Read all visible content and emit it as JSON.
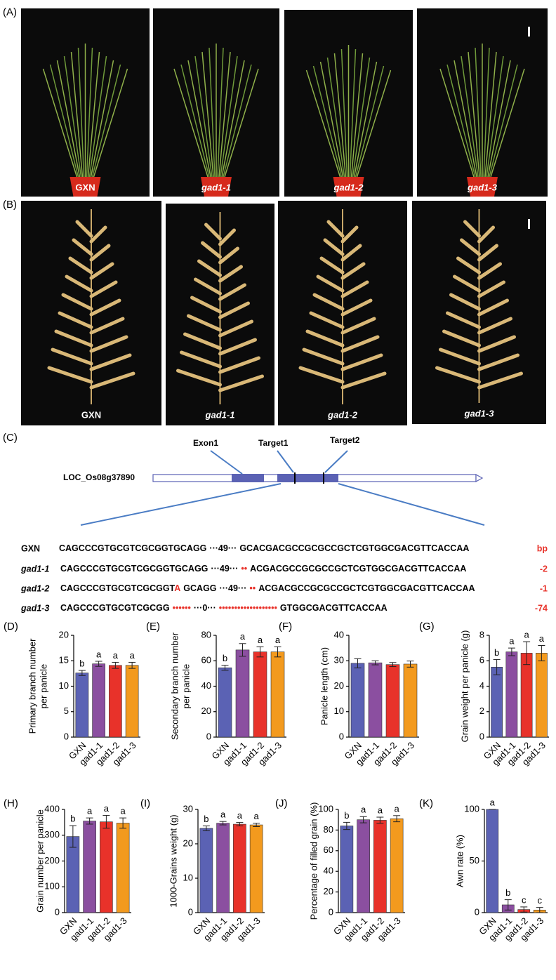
{
  "photos_a": {
    "label": "(A)",
    "captions": [
      "GXN",
      "gad1-1",
      "gad1-2",
      "gad1-3"
    ]
  },
  "photos_b": {
    "label": "(B)",
    "captions": [
      "GXN",
      "gad1-1",
      "gad1-2",
      "gad1-3"
    ]
  },
  "gene_diagram": {
    "label": "(C)",
    "gene": "LOC_Os08g37890",
    "features": [
      "Exon1",
      "Target1",
      "Target2"
    ]
  },
  "sequences": [
    {
      "name": "GXN",
      "segments": [
        {
          "text": "CAGCCCGTGCGTCGCGGTGCAGG"
        },
        {
          "text": "···49···"
        },
        {
          "text": "GCACGACGCCGCGCCGCTCGTGGCGACGTTCACCAA"
        }
      ],
      "change": "bp"
    },
    {
      "name": "gad1-1",
      "segments": [
        {
          "text": "CAGCCCGTGCGTCGCGGTGCAGG"
        },
        {
          "text": "···49···"
        },
        {
          "text": "••",
          "mutated": true
        },
        {
          "text": "ACGACGCCGCGCCGCTCGTGGCGACGTTCACCAA"
        }
      ],
      "change": "-2"
    },
    {
      "name": "gad1-2",
      "segments": [
        {
          "text": "CAGCCCGTGCGTCGCGGT"
        },
        {
          "text": "A",
          "mutated": true
        },
        {
          "text": "GCAGG"
        },
        {
          "text": "···49···"
        },
        {
          "text": "••",
          "mutated": true
        },
        {
          "text": "ACGACGCCGCGCCGCTCGTGGCGACGTTCACCAA"
        }
      ],
      "change": "-1"
    },
    {
      "name": "gad1-3",
      "segments": [
        {
          "text": "CAGCCCGTGCGTCGCGG"
        },
        {
          "text": "••••••",
          "mutated": true
        },
        {
          "text": "···0···"
        },
        {
          "text": "•••••••••••••••••••",
          "mutated": true
        },
        {
          "text": "GTGGCGACGTTCACCAA"
        }
      ],
      "change": "-74"
    }
  ],
  "chart_data": [
    {
      "type": "bar",
      "panel": "(D)",
      "ylabel": [
        "Primary branch number",
        "per panicle"
      ],
      "categories": [
        "GXN",
        "gad1-1",
        "gad1-2",
        "gad1-3"
      ],
      "values": [
        12.6,
        14.4,
        14.1,
        14.1
      ],
      "errors": [
        0.5,
        0.5,
        0.6,
        0.6
      ],
      "annotations": [
        "b",
        "a",
        "a",
        "a"
      ],
      "colors": [
        "#5b62b4",
        "#8b4fa0",
        "#e8322a",
        "#f39a1e"
      ],
      "ylim": [
        0,
        20
      ],
      "yticks": [
        0,
        5,
        10,
        15,
        20
      ]
    },
    {
      "type": "bar",
      "panel": "(E)",
      "ylabel": [
        "Secondary branch number",
        "per panicle"
      ],
      "categories": [
        "GXN",
        "gad1-1",
        "gad1-2",
        "gad1-3"
      ],
      "values": [
        54.5,
        68.5,
        67,
        67
      ],
      "errors": [
        2,
        5,
        4,
        4
      ],
      "annotations": [
        "b",
        "a",
        "a",
        "a"
      ],
      "colors": [
        "#5b62b4",
        "#8b4fa0",
        "#e8322a",
        "#f39a1e"
      ],
      "ylim": [
        0,
        80
      ],
      "yticks": [
        0,
        20,
        40,
        60,
        80
      ]
    },
    {
      "type": "bar",
      "panel": "(F)",
      "ylabel": [
        "Panicle length (cm)"
      ],
      "categories": [
        "GXN",
        "gad1-1",
        "gad1-2",
        "gad1-3"
      ],
      "values": [
        29,
        29.2,
        28.5,
        28.7
      ],
      "errors": [
        1.8,
        0.8,
        0.8,
        1.2
      ],
      "colors": [
        "#5b62b4",
        "#8b4fa0",
        "#e8322a",
        "#f39a1e"
      ],
      "ylim": [
        0,
        40
      ],
      "yticks": [
        0,
        10,
        20,
        30,
        40
      ]
    },
    {
      "type": "bar",
      "panel": "(G)",
      "ylabel": [
        "Grain weight per panicle (g)"
      ],
      "categories": [
        "GXN",
        "gad1-1",
        "gad1-2",
        "gad1-3"
      ],
      "values": [
        5.5,
        6.7,
        6.6,
        6.6
      ],
      "errors": [
        0.6,
        0.3,
        0.9,
        0.6
      ],
      "annotations": [
        "b",
        "a",
        "a",
        "a"
      ],
      "colors": [
        "#5b62b4",
        "#8b4fa0",
        "#e8322a",
        "#f39a1e"
      ],
      "ylim": [
        0,
        8
      ],
      "yticks": [
        0,
        2,
        4,
        6,
        8
      ]
    },
    {
      "type": "bar",
      "panel": "(H)",
      "ylabel": [
        "Grain number per panicle"
      ],
      "categories": [
        "GXN",
        "gad1-1",
        "gad1-2",
        "gad1-3"
      ],
      "values": [
        295,
        355,
        352,
        347
      ],
      "errors": [
        42,
        12,
        25,
        20
      ],
      "annotations": [
        "b",
        "a",
        "a",
        "a"
      ],
      "colors": [
        "#5b62b4",
        "#8b4fa0",
        "#e8322a",
        "#f39a1e"
      ],
      "ylim": [
        0,
        400
      ],
      "yticks": [
        0,
        100,
        200,
        300,
        400
      ]
    },
    {
      "type": "bar",
      "panel": "(I)",
      "ylabel": [
        "1000-Grains weight (g)"
      ],
      "categories": [
        "GXN",
        "gad1-1",
        "gad1-2",
        "gad1-3"
      ],
      "values": [
        24.5,
        26,
        25.7,
        25.5
      ],
      "errors": [
        0.7,
        0.5,
        0.5,
        0.5
      ],
      "annotations": [
        "b",
        "a",
        "a",
        "a"
      ],
      "colors": [
        "#5b62b4",
        "#8b4fa0",
        "#e8322a",
        "#f39a1e"
      ],
      "ylim": [
        0,
        30
      ],
      "yticks": [
        0,
        10,
        20,
        30
      ]
    },
    {
      "type": "bar",
      "panel": "(J)",
      "ylabel": [
        "Percentage of filled grain (%)"
      ],
      "categories": [
        "GXN",
        "gad1-1",
        "gad1-2",
        "gad1-3"
      ],
      "values": [
        84,
        90,
        89.5,
        91
      ],
      "errors": [
        3.5,
        3,
        3,
        3
      ],
      "annotations": [
        "b",
        "a",
        "a",
        "a"
      ],
      "colors": [
        "#5b62b4",
        "#8b4fa0",
        "#e8322a",
        "#f39a1e"
      ],
      "ylim": [
        0,
        100
      ],
      "yticks": [
        0,
        20,
        40,
        60,
        80,
        100
      ]
    },
    {
      "type": "bar",
      "panel": "(K)",
      "ylabel": [
        "Awn rate (%)"
      ],
      "categories": [
        "GXN",
        "gad1-1",
        "gad1-2",
        "gad1-3"
      ],
      "values": [
        100,
        7.5,
        3,
        2.5
      ],
      "errors": [
        0,
        5,
        2.5,
        2.5
      ],
      "annotations": [
        "a",
        "b",
        "c",
        "c"
      ],
      "colors": [
        "#5b62b4",
        "#8b4fa0",
        "#e8322a",
        "#f39a1e"
      ],
      "ylim": [
        0,
        100
      ],
      "yticks": [
        0,
        50,
        100
      ]
    }
  ]
}
